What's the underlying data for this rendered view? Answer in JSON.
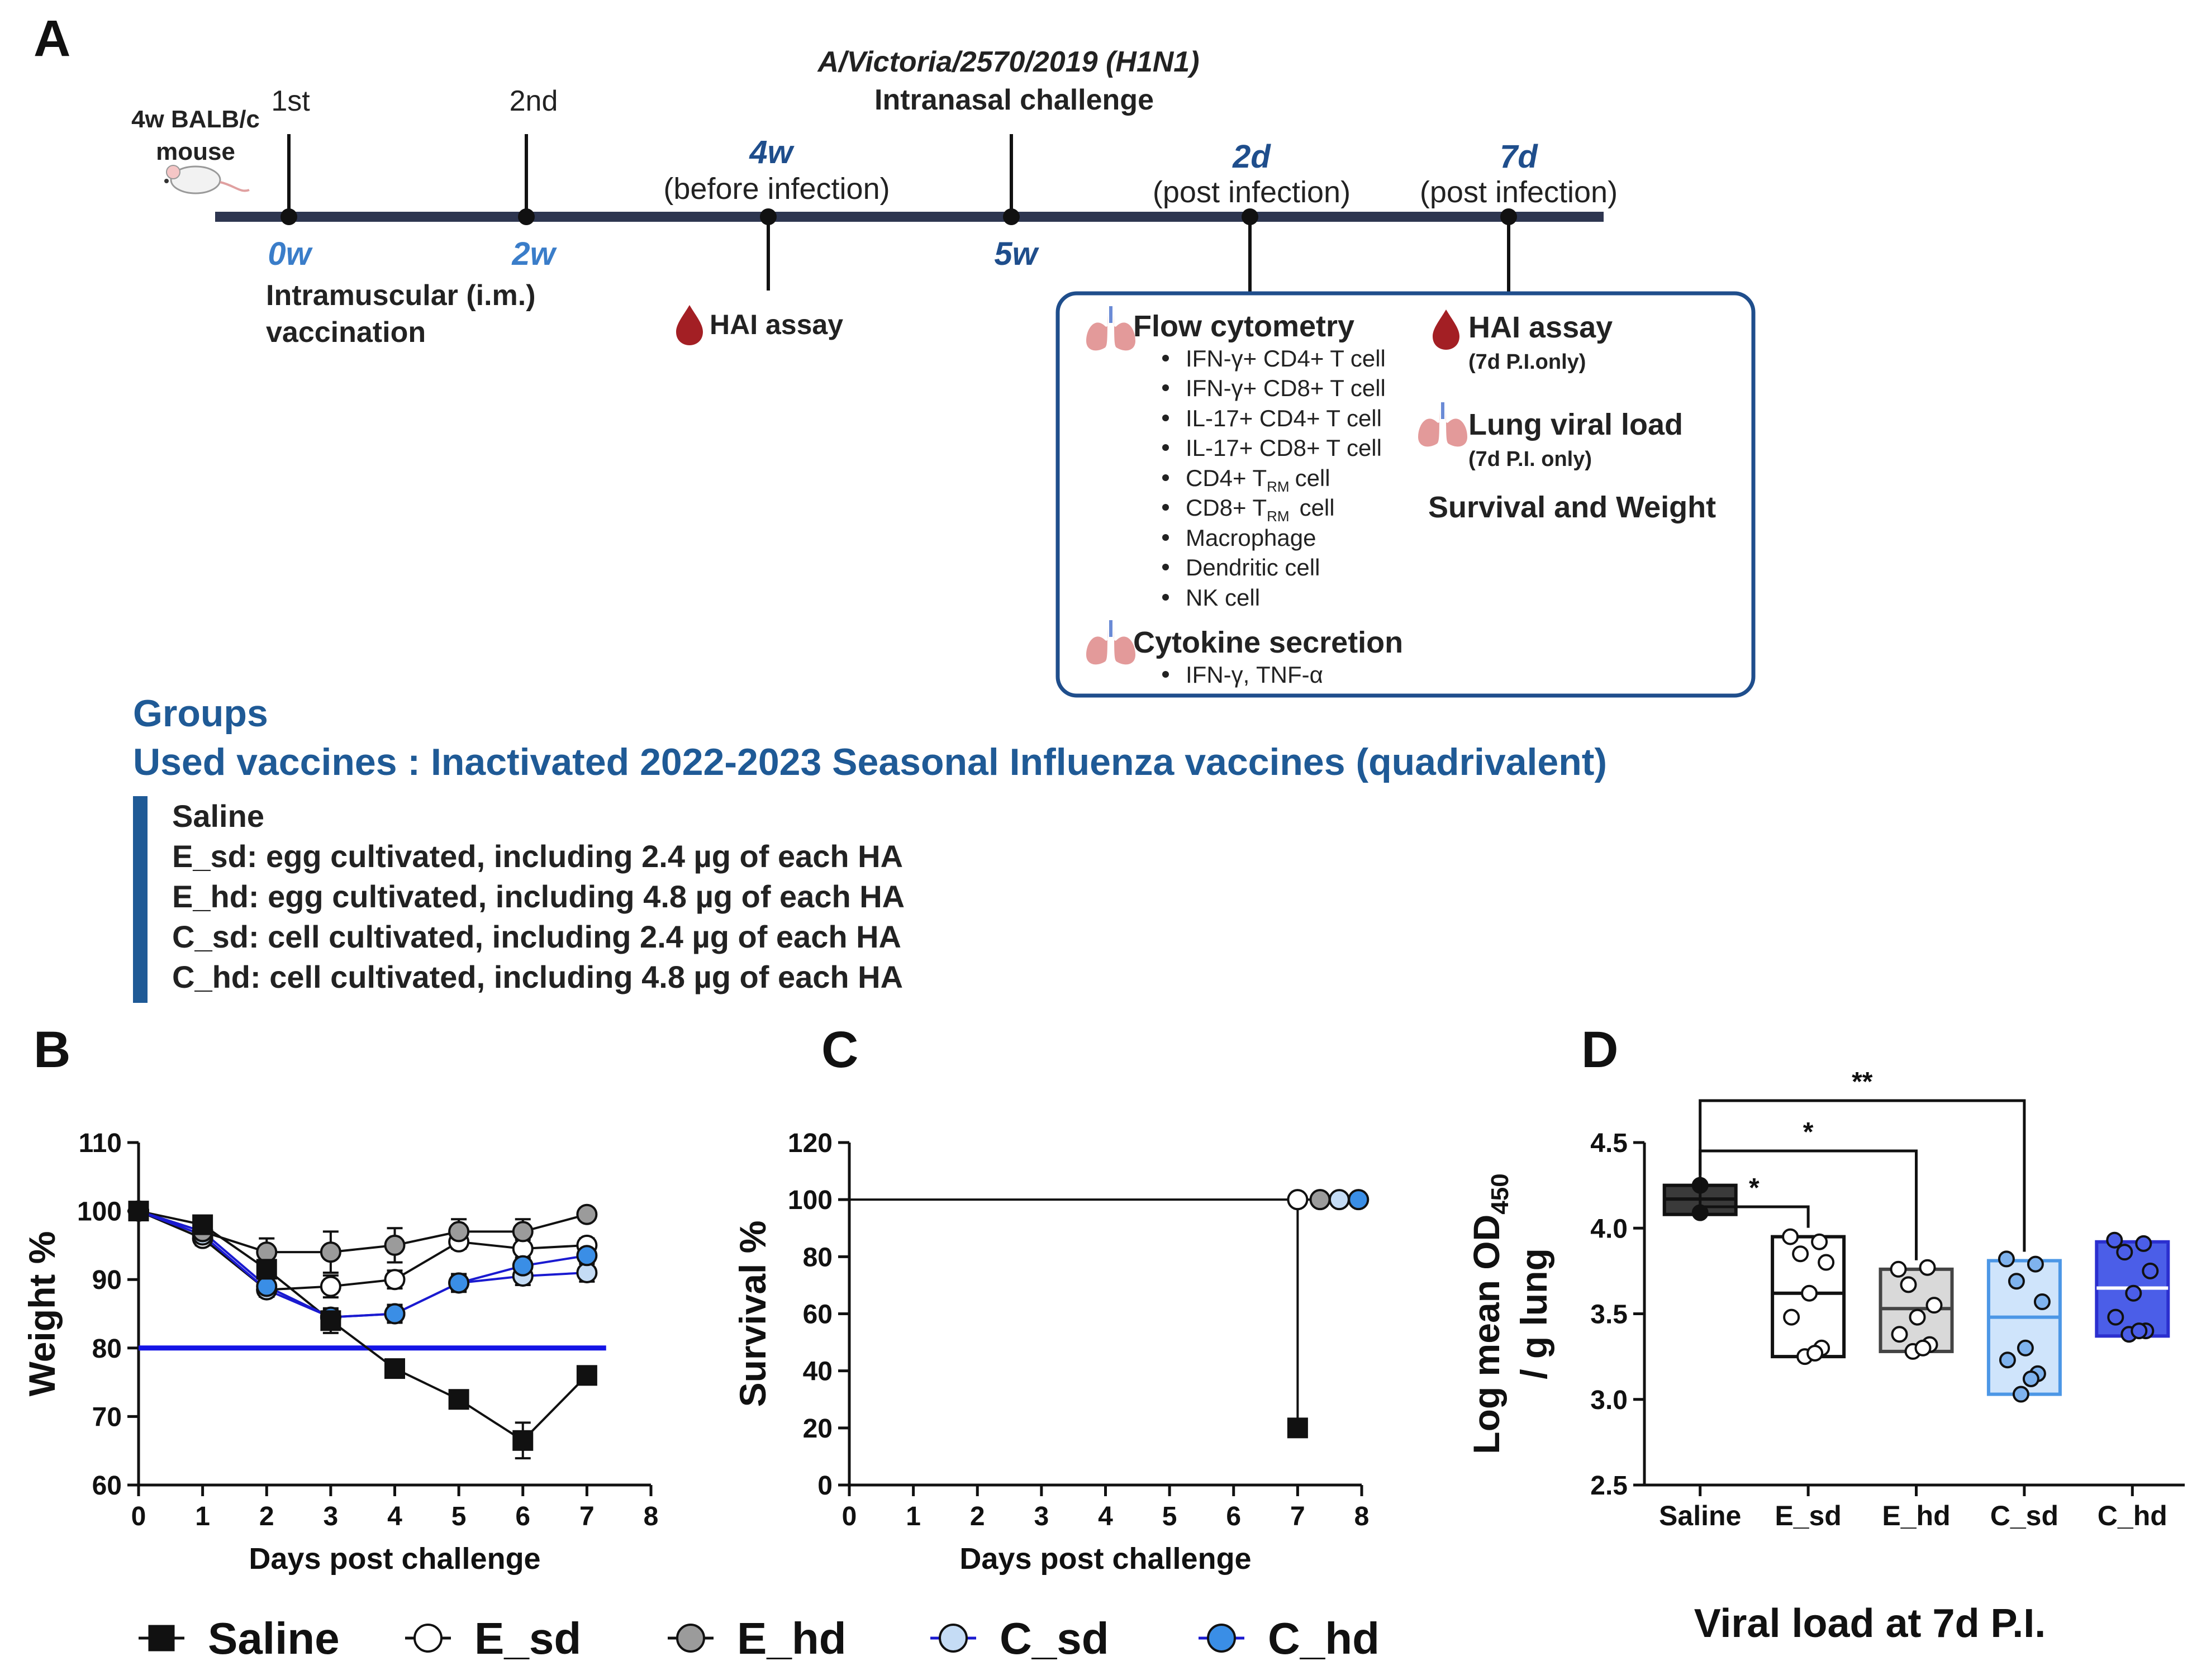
{
  "panel_labels": {
    "a": "A",
    "b": "B",
    "c": "C",
    "d": "D"
  },
  "timeline": {
    "mouse_label_1": "4w BALB/c",
    "mouse_label_2": "mouse",
    "dose1": "1st",
    "dose2": "2nd",
    "strain": "A/Victoria/2570/2019 (H1N1)",
    "challenge": "Intranasal challenge",
    "t0": "0w",
    "t2w": "2w",
    "t4w": "4w",
    "t4w_note": "(before infection)",
    "t5w": "5w",
    "t2d": "2d",
    "t2d_note": "(post infection)",
    "t7d": "7d",
    "t7d_note": "(post infection)",
    "vacc_1": "Intramuscular (i.m.)",
    "vacc_2": "vaccination",
    "hai_4w": "HAI assay",
    "colors": {
      "line": "#2e3650",
      "week": "#3a7dc9",
      "day": "#1f4e8c",
      "box": "#1f4e8c",
      "drop": "#a31f24",
      "lung": "#e39a9a"
    }
  },
  "assays": {
    "flow_title": "Flow cytometry",
    "flow_items": [
      "IFN-γ+ CD4+ T cell",
      "IFN-γ+ CD8+ T cell",
      "IL-17+ CD4+ T cell",
      "IL-17+ CD8+ T cell",
      "Macrophage",
      "Dendritic cell",
      "NK cell"
    ],
    "trm_cd4_pre": "CD4+ T",
    "trm_cd8_pre": "CD8+ T",
    "trm_sub": "RM",
    "trm_suffix": "cell",
    "cytokine_title": "Cytokine secretion",
    "cytokine_item": "IFN-γ, TNF-α",
    "hai_title": "HAI assay",
    "hai_note": "(7d P.I.only)",
    "lung_title": "Lung viral load",
    "lung_note": "(7d P.I. only)",
    "survival_title": "Survival and Weight"
  },
  "groups": {
    "title": "Groups",
    "vaccines": "Used vaccines : Inactivated 2022-2023 Seasonal Influenza vaccines (quadrivalent)",
    "list": [
      "Saline",
      "E_sd: egg cultivated, including 2.4 µg of each HA",
      "E_hd: egg cultivated, including 4.8 µg of each HA",
      "C_sd: cell cultivated, including 2.4 µg of each HA",
      "C_hd: cell cultivated, including 4.8 µg of each HA"
    ],
    "title_color": "#1f5a96"
  },
  "series_colors": {
    "Saline": "#111111",
    "E_sd": "#ffffff",
    "E_hd": "#9b9b9b",
    "C_sd": "#c5dcf5",
    "C_hd": "#3a8ee6"
  },
  "legend": [
    "Saline",
    "E_sd",
    "E_hd",
    "C_sd",
    "C_hd"
  ],
  "chart_data": [
    {
      "panel": "B",
      "type": "line",
      "xlabel": "Days post challenge",
      "ylabel": "Weight %",
      "xlim": [
        0,
        8
      ],
      "ylim": [
        60,
        110
      ],
      "xticks": [
        0,
        1,
        2,
        3,
        4,
        5,
        6,
        7,
        8
      ],
      "yticks": [
        60,
        70,
        80,
        90,
        100,
        110
      ],
      "threshold": 80,
      "threshold_color": "#1414e6",
      "x": [
        0,
        1,
        2,
        3,
        4,
        5,
        6,
        7
      ],
      "series": [
        {
          "name": "Saline",
          "values": [
            100,
            98,
            91.5,
            84,
            77,
            72.5,
            66.5,
            76
          ],
          "err": [
            0,
            0.8,
            1.2,
            1.8,
            1,
            1.3,
            2.6,
            0
          ]
        },
        {
          "name": "E_sd",
          "values": [
            100,
            96,
            88.5,
            89,
            90,
            95.5,
            94.5,
            95
          ],
          "err": [
            0,
            1,
            1,
            1.6,
            1.3,
            1,
            1.3,
            1
          ]
        },
        {
          "name": "E_hd",
          "values": [
            100,
            97,
            94,
            94,
            95,
            97,
            97,
            99.5
          ],
          "err": [
            0,
            0.8,
            2,
            3,
            2.5,
            1.8,
            1.8,
            0.8
          ]
        },
        {
          "name": "C_sd",
          "values": [
            100,
            96.5,
            88.5,
            84.5,
            85,
            89.5,
            90.5,
            91
          ],
          "err": [
            0,
            0.8,
            1,
            1,
            1.3,
            1.3,
            1.3,
            1.3
          ]
        },
        {
          "name": "C_hd",
          "values": [
            100,
            97,
            89,
            84.5,
            85,
            89.5,
            92,
            93.5
          ],
          "err": [
            0,
            0.8,
            1,
            1,
            1,
            1,
            1,
            1
          ]
        }
      ]
    },
    {
      "panel": "C",
      "type": "line",
      "xlabel": "Days post challenge",
      "ylabel": "Survival %",
      "xlim": [
        0,
        8
      ],
      "ylim": [
        0,
        120
      ],
      "xticks": [
        0,
        1,
        2,
        3,
        4,
        5,
        6,
        7,
        8
      ],
      "yticks": [
        0,
        20,
        40,
        60,
        80,
        100,
        120
      ],
      "survival_step": {
        "x": [
          0,
          7,
          7
        ],
        "y": [
          100,
          100,
          20
        ]
      },
      "series": [
        {
          "name": "Saline",
          "x": 7,
          "y": 20
        },
        {
          "name": "E_sd",
          "x": 7,
          "y": 100
        },
        {
          "name": "E_hd",
          "x": 7.35,
          "y": 100
        },
        {
          "name": "C_sd",
          "x": 7.65,
          "y": 100
        },
        {
          "name": "C_hd",
          "x": 7.95,
          "y": 100
        }
      ]
    },
    {
      "panel": "D",
      "type": "box",
      "title": "Viral load at 7d P.I.",
      "ylabel_main": "Log mean OD",
      "ylabel_sub": "450",
      "ylabel_line2": "/ g lung",
      "ylim": [
        2.5,
        4.5
      ],
      "yticks": [
        2.5,
        3.0,
        3.5,
        4.0,
        4.5
      ],
      "ytick_labels": [
        "2.5",
        "3.0",
        "3.5",
        "4.0",
        "4.5"
      ],
      "categories": [
        "Saline",
        "E_sd",
        "E_hd",
        "C_sd",
        "C_hd"
      ],
      "boxes": [
        {
          "name": "Saline",
          "min": 4.08,
          "median": 4.17,
          "max": 4.25,
          "points": [
            4.25,
            4.09
          ],
          "fill": "#3a3a3a",
          "stroke": "#111111",
          "median_color": "#111111"
        },
        {
          "name": "E_sd",
          "min": 3.25,
          "median": 3.62,
          "max": 3.95,
          "points": [
            3.95,
            3.92,
            3.85,
            3.8,
            3.62,
            3.48,
            3.3,
            3.25,
            3.27
          ],
          "fill": "#ffffff",
          "stroke": "#111111",
          "median_color": "#111111"
        },
        {
          "name": "E_hd",
          "min": 3.28,
          "median": 3.53,
          "max": 3.76,
          "points": [
            3.76,
            3.77,
            3.67,
            3.55,
            3.48,
            3.38,
            3.32,
            3.28,
            3.3
          ],
          "fill": "#d9d9d9",
          "stroke": "#444444",
          "median_color": "#444444"
        },
        {
          "name": "C_sd",
          "min": 3.03,
          "median": 3.48,
          "max": 3.81,
          "points": [
            3.82,
            3.79,
            3.69,
            3.57,
            3.3,
            3.23,
            3.15,
            3.03,
            3.12
          ],
          "fill": "#cfe4fb",
          "stroke": "#4c97e6",
          "median_color": "#4c97e6"
        },
        {
          "name": "C_hd",
          "min": 3.37,
          "median": 3.65,
          "max": 3.92,
          "points": [
            3.93,
            3.91,
            3.86,
            3.75,
            3.62,
            3.48,
            3.4,
            3.38,
            3.4
          ],
          "fill": "#4b5ee8",
          "stroke": "#2b2fcf",
          "median_color": "#ffffff"
        }
      ],
      "significance": [
        {
          "from": "Saline",
          "to": "E_sd",
          "label": "*"
        },
        {
          "from": "Saline",
          "to": "E_hd",
          "label": "*"
        },
        {
          "from": "Saline",
          "to": "C_sd",
          "label": "**"
        }
      ]
    }
  ]
}
